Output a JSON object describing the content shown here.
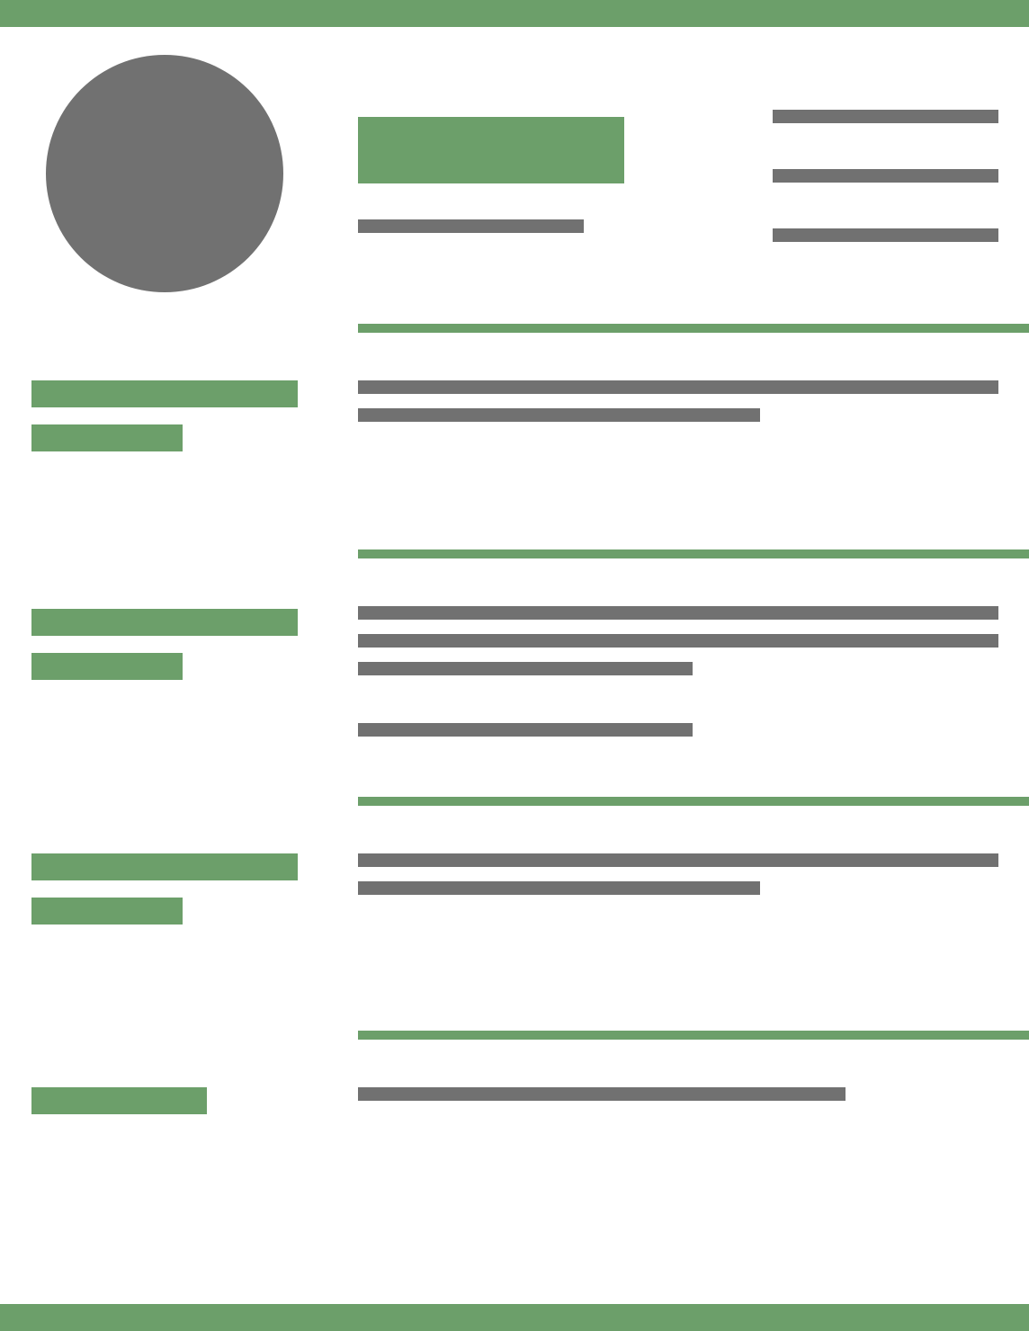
{
  "colors": {
    "accent": "#6c9f6a",
    "placeholder": "#717171",
    "background": "#ffffff"
  },
  "document": {
    "type": "resume-template",
    "sections": [
      {
        "heading_placeholders": 2,
        "text_lines": 2
      },
      {
        "heading_placeholders": 2,
        "text_lines": 4
      },
      {
        "heading_placeholders": 2,
        "text_lines": 2
      },
      {
        "heading_placeholders": 1,
        "text_lines": 1
      }
    ]
  }
}
